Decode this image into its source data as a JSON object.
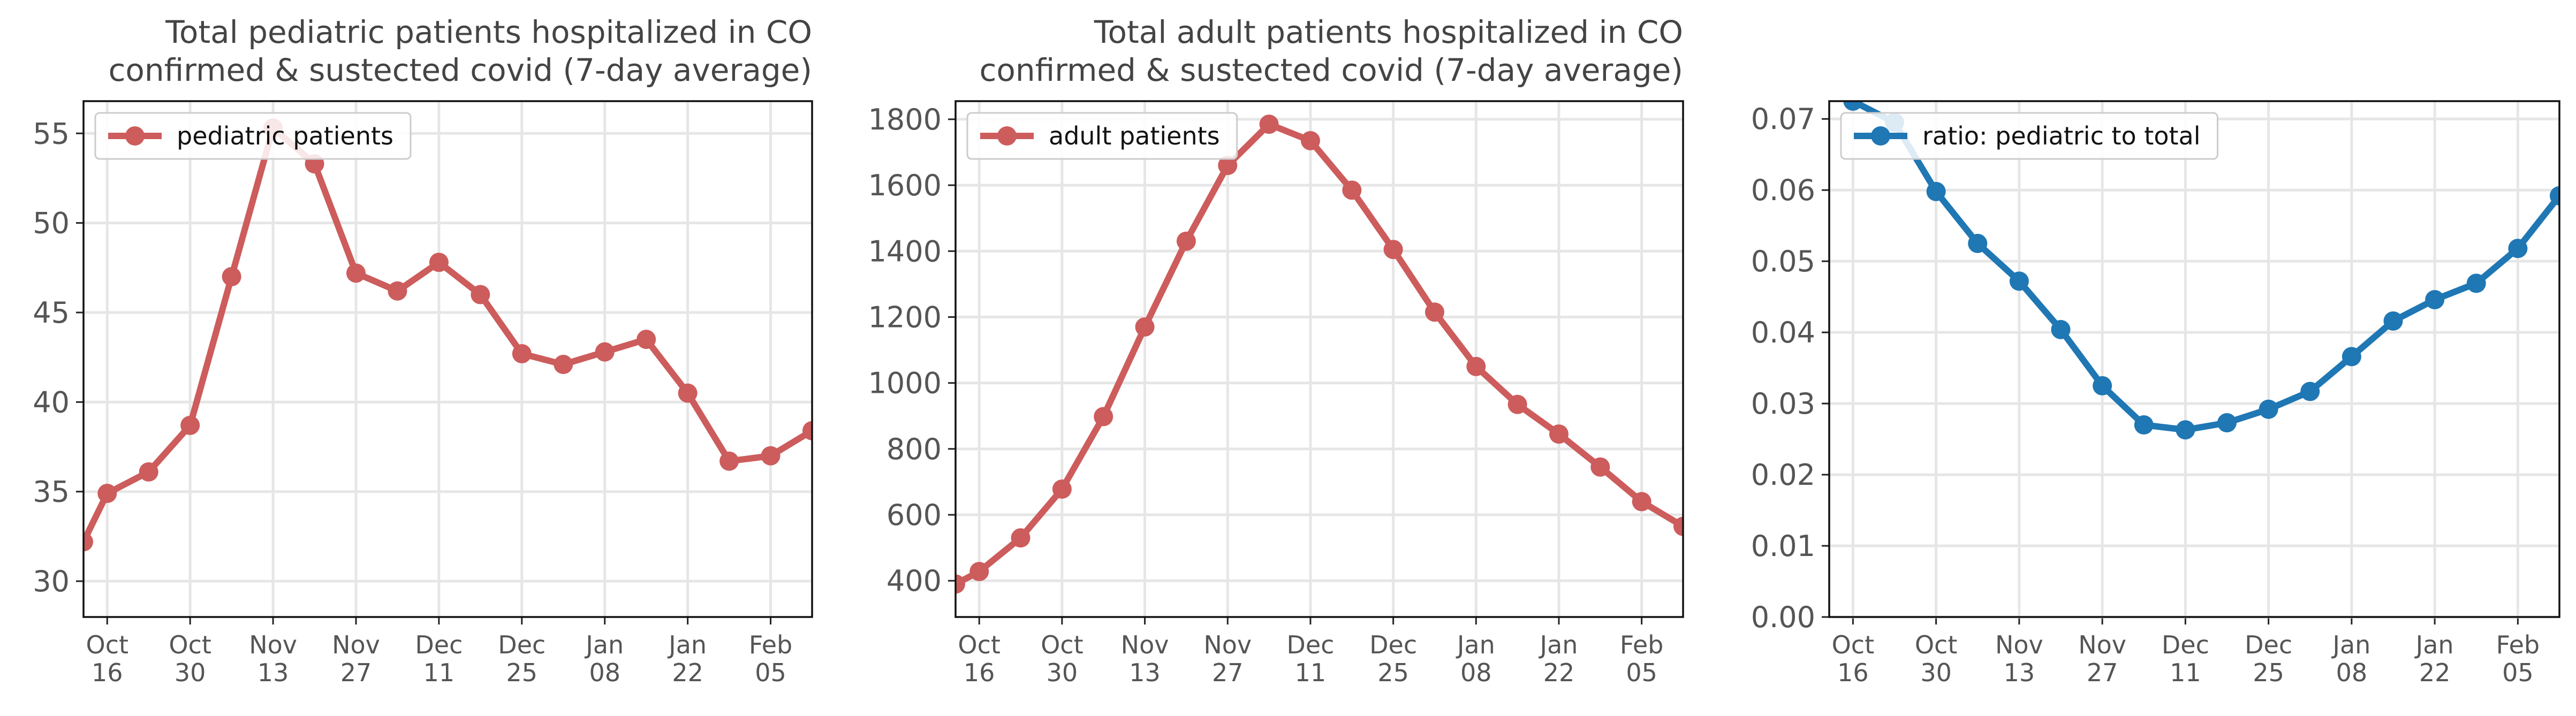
{
  "chart_data": [
    {
      "type": "line",
      "title": "Total pediatric patients hospitalized in CO\nconfirmed & sustected covid (7-day average)",
      "series": [
        {
          "name": "pediatric patients",
          "color": "#cd5c5c",
          "x": [
            "2021-10-12",
            "2021-10-16",
            "2021-10-23",
            "2021-10-30",
            "2021-11-06",
            "2021-11-13",
            "2021-11-20",
            "2021-11-27",
            "2021-12-04",
            "2021-12-11",
            "2021-12-18",
            "2021-12-25",
            "2022-01-01",
            "2022-01-08",
            "2022-01-15",
            "2022-01-22",
            "2022-01-29",
            "2022-02-05",
            "2022-02-12"
          ],
          "values": [
            32.2,
            34.9,
            36.1,
            38.7,
            47.0,
            55.3,
            53.3,
            47.2,
            46.2,
            47.8,
            46.0,
            42.7,
            42.1,
            42.8,
            43.5,
            40.5,
            36.7,
            37.0,
            38.4
          ]
        }
      ],
      "xlim": [
        "2021-10-12",
        "2022-02-12"
      ],
      "ylim": [
        28,
        56.8
      ],
      "yticks": [
        30,
        35,
        40,
        45,
        50,
        55
      ],
      "legend": "top-left",
      "grid": true
    },
    {
      "type": "line",
      "title": "Total adult patients hospitalized in CO\nconfirmed & sustected covid (7-day average)",
      "series": [
        {
          "name": "adult patients",
          "color": "#cd5c5c",
          "x": [
            "2021-10-12",
            "2021-10-16",
            "2021-10-23",
            "2021-10-30",
            "2021-11-06",
            "2021-11-13",
            "2021-11-20",
            "2021-11-27",
            "2021-12-04",
            "2021-12-11",
            "2021-12-18",
            "2021-12-25",
            "2022-01-01",
            "2022-01-08",
            "2022-01-15",
            "2022-01-22",
            "2022-01-29",
            "2022-02-05",
            "2022-02-12"
          ],
          "values": [
            390,
            428,
            530,
            678,
            898,
            1170,
            1430,
            1660,
            1785,
            1735,
            1585,
            1405,
            1215,
            1050,
            935,
            845,
            745,
            640,
            565
          ]
        }
      ],
      "xlim": [
        "2021-10-12",
        "2022-02-12"
      ],
      "ylim": [
        290,
        1855
      ],
      "yticks": [
        400,
        600,
        800,
        1000,
        1200,
        1400,
        1600,
        1800
      ],
      "legend": "top-left",
      "grid": true
    },
    {
      "type": "line",
      "title": "",
      "series": [
        {
          "name": "ratio: pediatric to total",
          "color": "#1f77b4",
          "x": [
            "2021-10-12",
            "2021-10-16",
            "2021-10-23",
            "2021-10-30",
            "2021-11-06",
            "2021-11-13",
            "2021-11-20",
            "2021-11-27",
            "2021-12-04",
            "2021-12-11",
            "2021-12-18",
            "2021-12-25",
            "2022-01-01",
            "2022-01-08",
            "2022-01-15",
            "2022-01-22",
            "2022-01-29",
            "2022-02-05",
            "2022-02-12"
          ],
          "values": [
            0.076,
            0.0725,
            0.0695,
            0.0598,
            0.0525,
            0.0472,
            0.0404,
            0.0325,
            0.027,
            0.0263,
            0.0273,
            0.0292,
            0.0317,
            0.0366,
            0.0416,
            0.0446,
            0.0469,
            0.0518,
            0.0592
          ]
        }
      ],
      "xlim": [
        "2021-10-12",
        "2022-02-12"
      ],
      "ylim": [
        0,
        0.0725
      ],
      "yticks": [
        0.0,
        0.01,
        0.02,
        0.03,
        0.04,
        0.05,
        0.06,
        0.07
      ],
      "legend": "top-left",
      "grid": true
    }
  ],
  "xtick_dates": [
    "2021-10-16",
    "2021-10-30",
    "2021-11-13",
    "2021-11-27",
    "2021-12-11",
    "2021-12-25",
    "2022-01-08",
    "2022-01-22",
    "2022-02-05"
  ],
  "xtick_labels": [
    [
      "Oct",
      "16"
    ],
    [
      "Oct",
      "30"
    ],
    [
      "Nov",
      "13"
    ],
    [
      "Nov",
      "27"
    ],
    [
      "Dec",
      "11"
    ],
    [
      "Dec",
      "25"
    ],
    [
      "Jan",
      "08"
    ],
    [
      "Jan",
      "22"
    ],
    [
      "Feb",
      "05"
    ]
  ]
}
